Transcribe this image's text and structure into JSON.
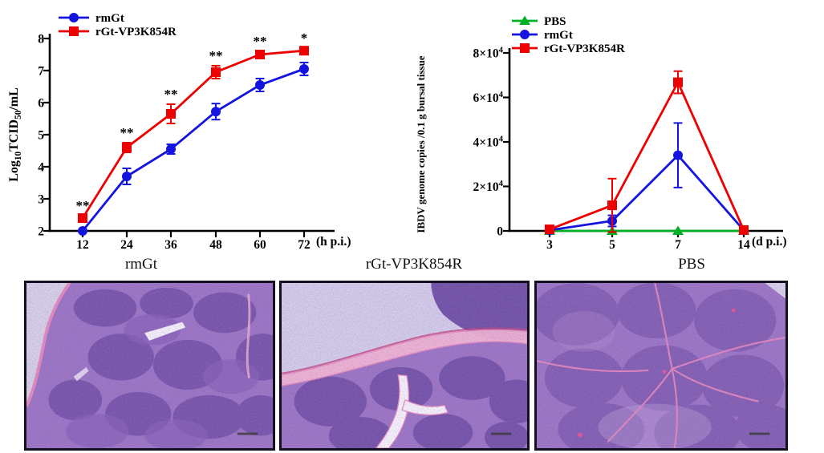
{
  "figure": {
    "panel_captions": [
      {
        "label": "rmGt"
      },
      {
        "label": "rGt-VP3K854R"
      },
      {
        "label": "PBS"
      }
    ]
  },
  "colors": {
    "blue_series": "#1414e0",
    "red_series": "#ee0000",
    "green_series": "#00b125",
    "axis_black": "#000000",
    "stain_tissue_purple": "#9a74c4",
    "stain_follicle_dark": "#6a4aa2",
    "stain_follicle_mid": "#8560b8",
    "stain_septa_pink": "#e589bc",
    "stain_pink_light": "#efb2d3",
    "stain_background_lavender": "#d7d2e8"
  },
  "chart_data": [
    {
      "type": "line",
      "name": "virus-growth-curve",
      "xlabel": "(h p.i.)",
      "ylabel_parts": [
        [
          "Log",
          ""
        ],
        [
          "10",
          "sub"
        ],
        [
          "TCID",
          ""
        ],
        [
          "50",
          "sub"
        ],
        [
          "/mL",
          ""
        ]
      ],
      "x_ticklabels": [
        "12",
        "24",
        "36",
        "48",
        "60",
        "72"
      ],
      "x_values": [
        12,
        24,
        36,
        48,
        60,
        72
      ],
      "ylim": [
        2,
        8
      ],
      "ytick_parts": [
        [
          [
            "2",
            ""
          ]
        ],
        [
          [
            "3",
            ""
          ]
        ],
        [
          [
            "4",
            ""
          ]
        ],
        [
          [
            "5",
            ""
          ]
        ],
        [
          [
            "6",
            ""
          ]
        ],
        [
          [
            "7",
            ""
          ]
        ],
        [
          [
            "8",
            ""
          ]
        ]
      ],
      "ytick_values": [
        2,
        3,
        4,
        5,
        6,
        7,
        8
      ],
      "legend_position": "top-left",
      "grid": false,
      "series": [
        {
          "name": "rmGt",
          "color": "#1414e0",
          "marker": "circle",
          "values": [
            2.0,
            3.7,
            4.55,
            5.72,
            6.55,
            7.05
          ],
          "errors": [
            0,
            0.25,
            0.15,
            0.25,
            0.2,
            0.2
          ]
        },
        {
          "name": "rGt-VP3K854R",
          "color": "#ee0000",
          "marker": "square",
          "values": [
            2.4,
            4.6,
            5.65,
            6.95,
            7.5,
            7.62
          ],
          "errors": [
            0.08,
            0.15,
            0.3,
            0.2,
            0.1,
            0.08
          ]
        }
      ],
      "significance": [
        {
          "xi": 0,
          "label": "**"
        },
        {
          "xi": 1,
          "label": "**"
        },
        {
          "xi": 2,
          "label": "**"
        },
        {
          "xi": 3,
          "label": "**"
        },
        {
          "xi": 4,
          "label": "**"
        },
        {
          "xi": 5,
          "label": "*"
        }
      ]
    },
    {
      "type": "line",
      "name": "ibdv-genome-copies",
      "xlabel": "(d p.i.)",
      "ylabel_parts": [
        [
          "IBDV genome copies /0.1 g bursal tissue",
          ""
        ]
      ],
      "x_ticklabels": [
        "3",
        "5",
        "7",
        "14"
      ],
      "x_values": [
        3,
        5,
        7,
        14
      ],
      "ylim": [
        0,
        80000
      ],
      "ytick_parts": [
        [
          [
            "0",
            ""
          ]
        ],
        [
          [
            "2×10",
            ""
          ],
          [
            "4",
            "sup"
          ]
        ],
        [
          [
            "4×10",
            ""
          ],
          [
            "4",
            "sup"
          ]
        ],
        [
          [
            "6×10",
            ""
          ],
          [
            "4",
            "sup"
          ]
        ],
        [
          [
            "8×10",
            ""
          ],
          [
            "4",
            "sup"
          ]
        ]
      ],
      "ytick_values": [
        0,
        20000,
        40000,
        60000,
        80000
      ],
      "legend_position": "top-left",
      "grid": false,
      "series": [
        {
          "name": "PBS",
          "color": "#00b125",
          "marker": "triangle",
          "values": [
            0,
            0,
            0,
            0
          ],
          "errors": [
            0,
            0,
            0,
            0
          ]
        },
        {
          "name": "rmGt",
          "color": "#1414e0",
          "marker": "circle",
          "values": [
            300,
            4500,
            34000,
            300
          ],
          "errors": [
            300,
            2500,
            14500,
            300
          ]
        },
        {
          "name": "rGt-VP3K854R",
          "color": "#ee0000",
          "marker": "square",
          "values": [
            700,
            11500,
            66800,
            400
          ],
          "errors": [
            500,
            12000,
            5000,
            300
          ]
        }
      ],
      "significance": []
    }
  ],
  "histology": {
    "panels": [
      {
        "name": "rmGt-bursa-section"
      },
      {
        "name": "rGt-VP3K854R-bursa-section"
      },
      {
        "name": "PBS-bursa-section"
      }
    ]
  }
}
